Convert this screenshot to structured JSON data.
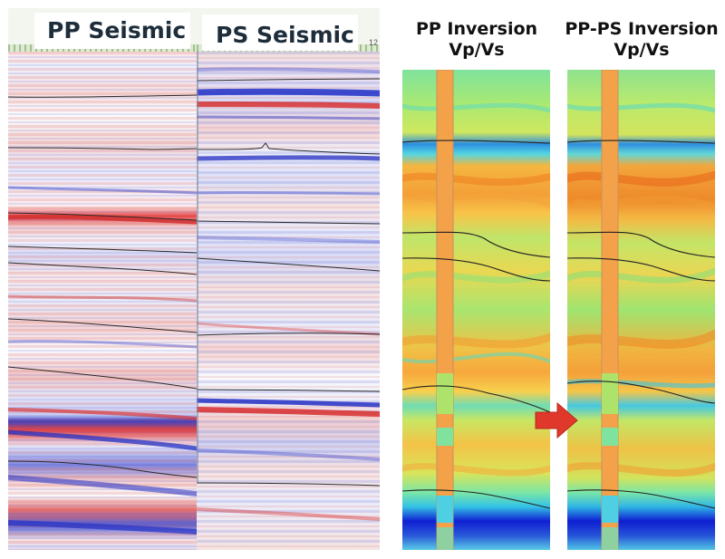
{
  "titles": {
    "pp_seismic": "PP Seismic",
    "ps_seismic": "PS Seismic",
    "pp_inversion_line1": "PP Inversion",
    "pp_inversion_line2": "Vp/Vs",
    "ppps_inversion_line1": "PP-PS Inversion",
    "ppps_inversion_line2": "Vp/Vs"
  },
  "toolbar": {
    "scale_number": "12"
  },
  "icons": {
    "comparison_arrow": "right-arrow-icon"
  },
  "colors": {
    "seismic_positive": "#d63a3a",
    "seismic_negative": "#2b35c9",
    "horizon_line": "#222222",
    "arrow": "#e0382a",
    "inversion_low": "#1a2bd6",
    "inversion_mid": "#9ee86e",
    "inversion_high": "#f08a20"
  }
}
